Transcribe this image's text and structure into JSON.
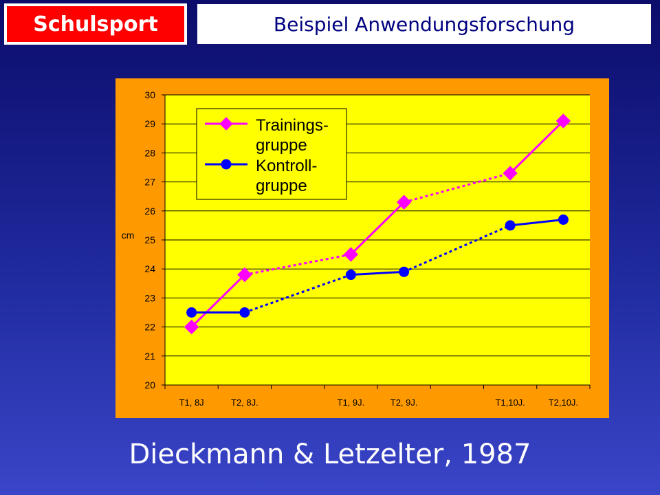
{
  "header": {
    "section_label": "Schulsport",
    "title": "Beispiel Anwendungsforschung"
  },
  "colors": {
    "plot_background": "#ffff00",
    "frame": "#ff9900",
    "trainings": "#ff00ff",
    "kontroll": "#0000ff"
  },
  "chart_data": {
    "type": "line",
    "categories": [
      "T1, 8J",
      "T2, 8J.",
      "",
      "T1, 9J.",
      "T2, 9J.",
      "",
      "T1,10J.",
      "T2,10J."
    ],
    "ylabel": "cm",
    "ylim": [
      20,
      30
    ],
    "yticks": [
      20,
      21,
      22,
      23,
      24,
      25,
      26,
      27,
      28,
      29,
      30
    ],
    "grid": true,
    "legend_position": "top-left",
    "series": [
      {
        "name": "Trainings- gruppe",
        "legend_lines": [
          "Trainings-",
          "gruppe"
        ],
        "marker": "diamond",
        "points": [
          {
            "category": "T1, 8J",
            "y": 22.0
          },
          {
            "category": "T2, 8J.",
            "y": 23.8
          },
          {
            "category": "T1, 9J.",
            "y": 24.5
          },
          {
            "category": "T2, 9J.",
            "y": 26.3
          },
          {
            "category": "T1,10J.",
            "y": 27.3
          },
          {
            "category": "T2,10J.",
            "y": 29.1
          }
        ]
      },
      {
        "name": "Kontroll- gruppe",
        "legend_lines": [
          "Kontroll-",
          "gruppe"
        ],
        "marker": "circle",
        "points": [
          {
            "category": "T1, 8J",
            "y": 22.5
          },
          {
            "category": "T2, 8J.",
            "y": 22.5
          },
          {
            "category": "T1, 9J.",
            "y": 23.8
          },
          {
            "category": "T2, 9J.",
            "y": 23.9
          },
          {
            "category": "T1,10J.",
            "y": 25.5
          },
          {
            "category": "T2,10J.",
            "y": 25.7
          }
        ]
      }
    ]
  },
  "caption": "Dieckmann & Letzelter, 1987"
}
